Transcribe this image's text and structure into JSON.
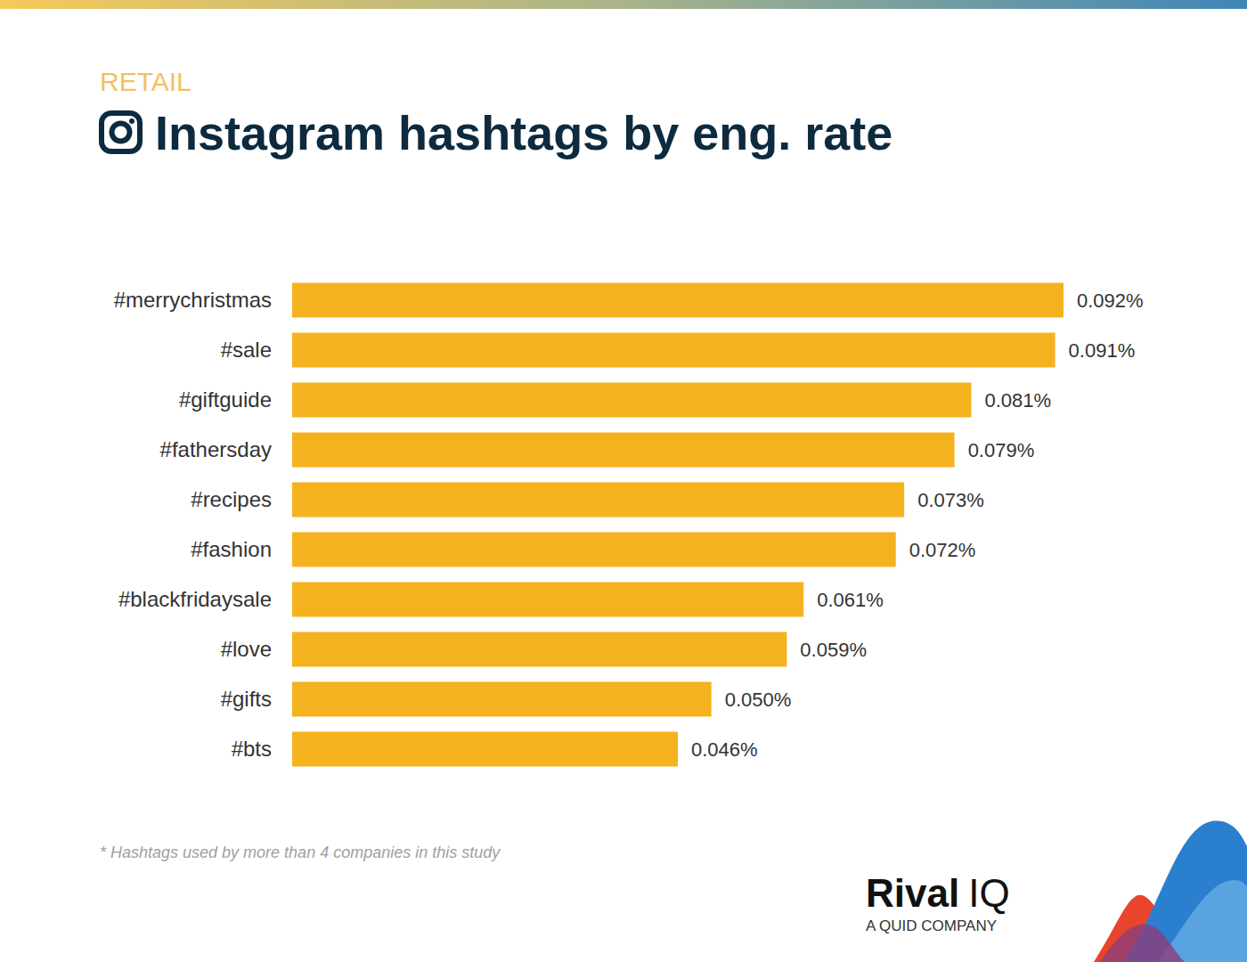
{
  "chart_data": {
    "type": "bar",
    "orientation": "horizontal",
    "subtitle": "RETAIL",
    "title": "Instagram hashtags by eng. rate",
    "categories": [
      "#merrychristmas",
      "#sale",
      "#giftguide",
      "#fathersday",
      "#recipes",
      "#fashion",
      "#blackfridaysale",
      "#love",
      "#gifts",
      "#bts"
    ],
    "values": [
      0.092,
      0.091,
      0.081,
      0.079,
      0.073,
      0.072,
      0.061,
      0.059,
      0.05,
      0.046
    ],
    "value_labels": [
      "0.092%",
      "0.091%",
      "0.081%",
      "0.079%",
      "0.073%",
      "0.072%",
      "0.061%",
      "0.059%",
      "0.050%",
      "0.046%"
    ],
    "color": "#f5b21f",
    "xlim": [
      0,
      0.092
    ],
    "xticks": [],
    "grid": false,
    "data_labels": true,
    "tick_labels": "y",
    "annotations": [
      "* Hashtags used by more than 4 companies in this study",
      "Rival",
      "IQ",
      "A QUID COMPANY"
    ]
  }
}
